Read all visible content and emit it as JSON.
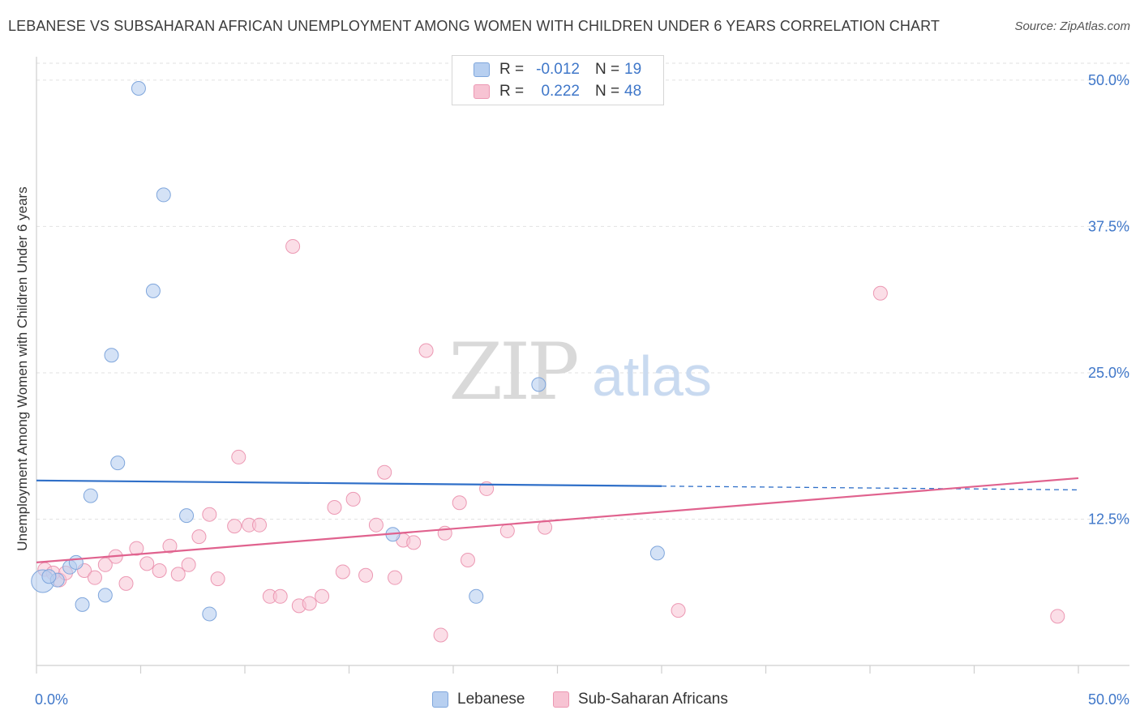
{
  "header": {
    "title": "LEBANESE VS SUBSAHARAN AFRICAN UNEMPLOYMENT AMONG WOMEN WITH CHILDREN UNDER 6 YEARS CORRELATION CHART",
    "source": "Source: ZipAtlas.com"
  },
  "watermark": {
    "zip": "ZIP",
    "atlas": "atlas"
  },
  "legend": {
    "r_label": "R =",
    "n_label": "N =",
    "rows": [
      {
        "r": "-0.012",
        "n": "19"
      },
      {
        "r": "0.222",
        "n": "48"
      }
    ],
    "bottom": [
      "Lebanese",
      "Sub-Saharan Africans"
    ]
  },
  "colors": {
    "blue_fill": "#b7cff0",
    "blue_stroke": "#7fa6dc",
    "blue_line": "#2f6fc8",
    "pink_fill": "#f7c3d3",
    "pink_stroke": "#ec98b3",
    "pink_line": "#e0628e",
    "tick_label": "#3f77c9"
  },
  "chart_data": {
    "type": "scatter",
    "title": "LEBANESE VS SUBSAHARAN AFRICAN UNEMPLOYMENT AMONG WOMEN WITH CHILDREN UNDER 6 YEARS CORRELATION CHART",
    "xlabel": "",
    "ylabel": "Unemployment Among Women with Children Under 6 years",
    "xlim": [
      0,
      50
    ],
    "ylim": [
      0,
      52
    ],
    "x_tick_labels": [
      "0.0%",
      "50.0%"
    ],
    "y_ticks": [
      12.5,
      25.0,
      37.5,
      50.0
    ],
    "y_tick_labels": [
      "12.5%",
      "25.0%",
      "37.5%",
      "50.0%"
    ],
    "grid": true,
    "legend_position": "top-center",
    "series": [
      {
        "name": "Lebanese",
        "r": -0.012,
        "n": 19,
        "trend": {
          "x": [
            0,
            50
          ],
          "y": [
            15.8,
            15.0
          ],
          "solid_until": 30
        },
        "points": [
          {
            "x": 0.3,
            "y": 7.2,
            "big": true
          },
          {
            "x": 1.0,
            "y": 7.3
          },
          {
            "x": 1.6,
            "y": 8.4
          },
          {
            "x": 1.9,
            "y": 8.8
          },
          {
            "x": 2.2,
            "y": 5.2
          },
          {
            "x": 3.3,
            "y": 6.0
          },
          {
            "x": 3.6,
            "y": 26.5
          },
          {
            "x": 2.6,
            "y": 14.5
          },
          {
            "x": 3.9,
            "y": 17.3
          },
          {
            "x": 4.9,
            "y": 49.3
          },
          {
            "x": 5.6,
            "y": 32.0
          },
          {
            "x": 6.1,
            "y": 40.2
          },
          {
            "x": 7.2,
            "y": 12.8
          },
          {
            "x": 8.3,
            "y": 4.4
          },
          {
            "x": 17.1,
            "y": 11.2
          },
          {
            "x": 21.1,
            "y": 5.9
          },
          {
            "x": 24.1,
            "y": 24.0
          },
          {
            "x": 29.8,
            "y": 9.6
          },
          {
            "x": 0.6,
            "y": 7.6
          }
        ]
      },
      {
        "name": "Sub-Saharan Africans",
        "r": 0.222,
        "n": 48,
        "trend": {
          "x": [
            0,
            50
          ],
          "y": [
            8.8,
            16.0
          ]
        },
        "points": [
          {
            "x": 0.4,
            "y": 8.2
          },
          {
            "x": 0.8,
            "y": 7.9
          },
          {
            "x": 1.1,
            "y": 7.3
          },
          {
            "x": 1.4,
            "y": 7.9
          },
          {
            "x": 2.3,
            "y": 8.1
          },
          {
            "x": 2.8,
            "y": 7.5
          },
          {
            "x": 3.3,
            "y": 8.6
          },
          {
            "x": 3.8,
            "y": 9.3
          },
          {
            "x": 4.3,
            "y": 7.0
          },
          {
            "x": 4.8,
            "y": 10.0
          },
          {
            "x": 5.3,
            "y": 8.7
          },
          {
            "x": 5.9,
            "y": 8.1
          },
          {
            "x": 6.4,
            "y": 10.2
          },
          {
            "x": 6.8,
            "y": 7.8
          },
          {
            "x": 7.3,
            "y": 8.6
          },
          {
            "x": 7.8,
            "y": 11.0
          },
          {
            "x": 8.3,
            "y": 12.9
          },
          {
            "x": 8.7,
            "y": 7.4
          },
          {
            "x": 9.5,
            "y": 11.9
          },
          {
            "x": 9.7,
            "y": 17.8
          },
          {
            "x": 10.2,
            "y": 12.0
          },
          {
            "x": 10.7,
            "y": 12.0
          },
          {
            "x": 11.2,
            "y": 5.9
          },
          {
            "x": 11.7,
            "y": 5.9
          },
          {
            "x": 12.3,
            "y": 35.8
          },
          {
            "x": 12.6,
            "y": 5.1
          },
          {
            "x": 13.1,
            "y": 5.3
          },
          {
            "x": 13.7,
            "y": 5.9
          },
          {
            "x": 14.3,
            "y": 13.5
          },
          {
            "x": 14.7,
            "y": 8.0
          },
          {
            "x": 15.2,
            "y": 14.2
          },
          {
            "x": 15.8,
            "y": 7.7
          },
          {
            "x": 16.3,
            "y": 12.0
          },
          {
            "x": 16.7,
            "y": 16.5
          },
          {
            "x": 17.2,
            "y": 7.5
          },
          {
            "x": 17.6,
            "y": 10.7
          },
          {
            "x": 18.1,
            "y": 10.5
          },
          {
            "x": 18.7,
            "y": 26.9
          },
          {
            "x": 19.4,
            "y": 2.6
          },
          {
            "x": 19.6,
            "y": 11.3
          },
          {
            "x": 20.3,
            "y": 13.9
          },
          {
            "x": 20.7,
            "y": 9.0
          },
          {
            "x": 21.6,
            "y": 15.1
          },
          {
            "x": 22.6,
            "y": 11.5
          },
          {
            "x": 24.4,
            "y": 11.8
          },
          {
            "x": 30.8,
            "y": 4.7
          },
          {
            "x": 40.5,
            "y": 31.8
          },
          {
            "x": 49.0,
            "y": 4.2
          }
        ]
      }
    ]
  }
}
